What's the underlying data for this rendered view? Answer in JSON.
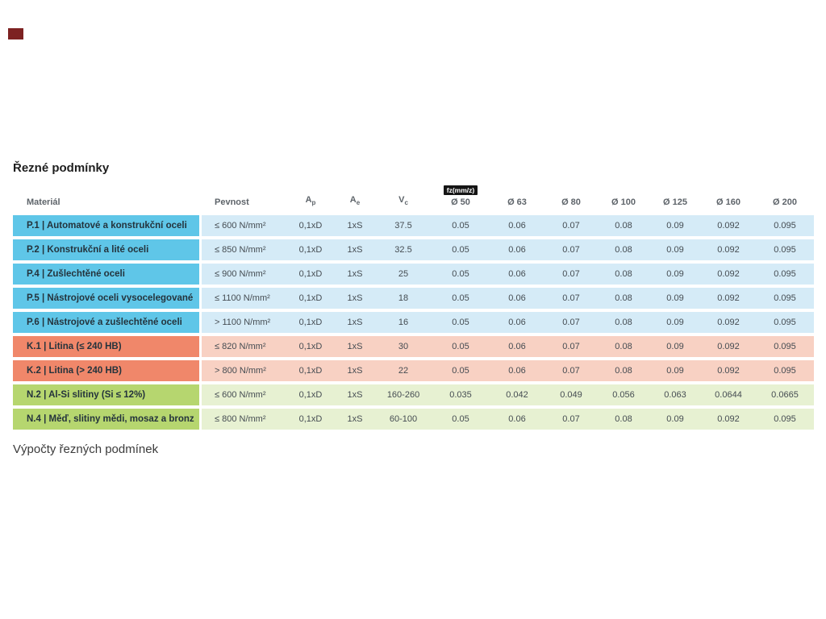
{
  "page": {
    "title": "Řezné podmínky",
    "footer_link": "Výpočty řezných podmínek"
  },
  "colors": {
    "accent_mark": "#7d2222",
    "steel_material": "#5fc6e8",
    "steel_values": "#d5ebf7",
    "cast_iron_material": "#f0876a",
    "cast_iron_values": "#f8d1c3",
    "nonferrous_material": "#b6d66f",
    "nonferrous_values": "#e7f1d2",
    "fz_badge_bg": "#151515"
  },
  "table": {
    "headers": {
      "material": "Materiál",
      "pevnost": "Pevnost",
      "ap_base": "A",
      "ap_sub": "p",
      "ae_base": "A",
      "ae_sub": "e",
      "vc_base": "V",
      "vc_sub": "c",
      "fz_badge": "fz(mm/z)",
      "diameters": [
        "Ø 50",
        "Ø 63",
        "Ø 80",
        "Ø 100",
        "Ø 125",
        "Ø 160",
        "Ø 200"
      ]
    },
    "rows": [
      {
        "group": "steel",
        "material": "P.1 | Automatové a konstrukční oceli",
        "pevnost": "≤ 600 N/mm²",
        "ap": "0,1xD",
        "ae": "1xS",
        "vc": "37.5",
        "fz": [
          "0.05",
          "0.06",
          "0.07",
          "0.08",
          "0.09",
          "0.092",
          "0.095"
        ]
      },
      {
        "group": "steel",
        "material": "P.2 | Konstrukční a lité oceli",
        "pevnost": "≤ 850 N/mm²",
        "ap": "0,1xD",
        "ae": "1xS",
        "vc": "32.5",
        "fz": [
          "0.05",
          "0.06",
          "0.07",
          "0.08",
          "0.09",
          "0.092",
          "0.095"
        ]
      },
      {
        "group": "steel",
        "material": "P.4 | Zušlechtěné oceli",
        "pevnost": "≤ 900 N/mm²",
        "ap": "0,1xD",
        "ae": "1xS",
        "vc": "25",
        "fz": [
          "0.05",
          "0.06",
          "0.07",
          "0.08",
          "0.09",
          "0.092",
          "0.095"
        ]
      },
      {
        "group": "steel",
        "material": "P.5 | Nástrojové oceli vysocelegované",
        "pevnost": "≤ 1100 N/mm²",
        "ap": "0,1xD",
        "ae": "1xS",
        "vc": "18",
        "fz": [
          "0.05",
          "0.06",
          "0.07",
          "0.08",
          "0.09",
          "0.092",
          "0.095"
        ]
      },
      {
        "group": "steel",
        "material": "P.6 | Nástrojové a zušlechtěné oceli",
        "pevnost": "> 1100 N/mm²",
        "ap": "0,1xD",
        "ae": "1xS",
        "vc": "16",
        "fz": [
          "0.05",
          "0.06",
          "0.07",
          "0.08",
          "0.09",
          "0.092",
          "0.095"
        ]
      },
      {
        "group": "cast",
        "material": "K.1 | Litina (≤ 240 HB)",
        "pevnost": "≤ 820 N/mm²",
        "ap": "0,1xD",
        "ae": "1xS",
        "vc": "30",
        "fz": [
          "0.05",
          "0.06",
          "0.07",
          "0.08",
          "0.09",
          "0.092",
          "0.095"
        ]
      },
      {
        "group": "cast",
        "material": "K.2 | Litina (> 240 HB)",
        "pevnost": "> 800 N/mm²",
        "ap": "0,1xD",
        "ae": "1xS",
        "vc": "22",
        "fz": [
          "0.05",
          "0.06",
          "0.07",
          "0.08",
          "0.09",
          "0.092",
          "0.095"
        ]
      },
      {
        "group": "non",
        "material": "N.2 | Al-Si slitiny (Si ≤ 12%)",
        "pevnost": "≤ 600 N/mm²",
        "ap": "0,1xD",
        "ae": "1xS",
        "vc": "160-260",
        "fz": [
          "0.035",
          "0.042",
          "0.049",
          "0.056",
          "0.063",
          "0.0644",
          "0.0665"
        ]
      },
      {
        "group": "non",
        "material": "N.4 | Měď, slitiny mědi, mosaz a bronz",
        "pevnost": "≤ 800 N/mm²",
        "ap": "0,1xD",
        "ae": "1xS",
        "vc": "60-100",
        "fz": [
          "0.05",
          "0.06",
          "0.07",
          "0.08",
          "0.09",
          "0.092",
          "0.095"
        ]
      }
    ]
  }
}
